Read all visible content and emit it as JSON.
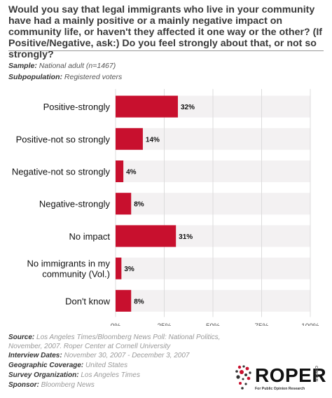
{
  "question": "Would you say that legal immigrants who live in your community have had a mainly positive or a mainly negative impact on community life, or haven't they affected it one way or the other? (If Positive/Negative, ask:) Do you feel strongly about that, or not so strongly?",
  "sample": {
    "label": "Sample:",
    "value": "National adult (n=1467)"
  },
  "subpopulation": {
    "label": "Subpopulation:",
    "value": "Registered voters"
  },
  "chart_data": {
    "type": "bar",
    "orientation": "horizontal",
    "categories": [
      [
        "Positive-strongly"
      ],
      [
        "Positive-not so strongly"
      ],
      [
        "Negative-not so strongly"
      ],
      [
        "Negative-strongly"
      ],
      [
        "No impact"
      ],
      [
        "No immigrants in my",
        "community (Vol.)"
      ],
      [
        "Don't know"
      ]
    ],
    "values": [
      32,
      14,
      4,
      8,
      31,
      3,
      8
    ],
    "value_labels": [
      "32%",
      "14%",
      "4%",
      "8%",
      "31%",
      "3%",
      "8%"
    ],
    "xlim": [
      0,
      100
    ],
    "xticks": [
      "0%",
      "25%",
      "50%",
      "75%",
      "100%"
    ],
    "bar_color": "#c8102e",
    "track_color": "#f3f1f2",
    "grid": true
  },
  "footer": {
    "source_label": "Source:",
    "source_value": "Los Angeles Times/Bloomberg News Poll: National Politics, November, 2007. Roper Center at Cornell University",
    "dates_label": "Interview Dates:",
    "dates_value": "November 30, 2007 - December 3, 2007",
    "coverage_label": "Geographic Coverage:",
    "coverage_value": "United States",
    "org_label": "Survey Organization:",
    "org_value": "Los Angeles Times",
    "sponsor_label": "Sponsor:",
    "sponsor_value": "Bloomberg News"
  },
  "logo": {
    "word": "ROPER",
    "center": "CENTER",
    "tagline": "For Public Opinion Research"
  }
}
